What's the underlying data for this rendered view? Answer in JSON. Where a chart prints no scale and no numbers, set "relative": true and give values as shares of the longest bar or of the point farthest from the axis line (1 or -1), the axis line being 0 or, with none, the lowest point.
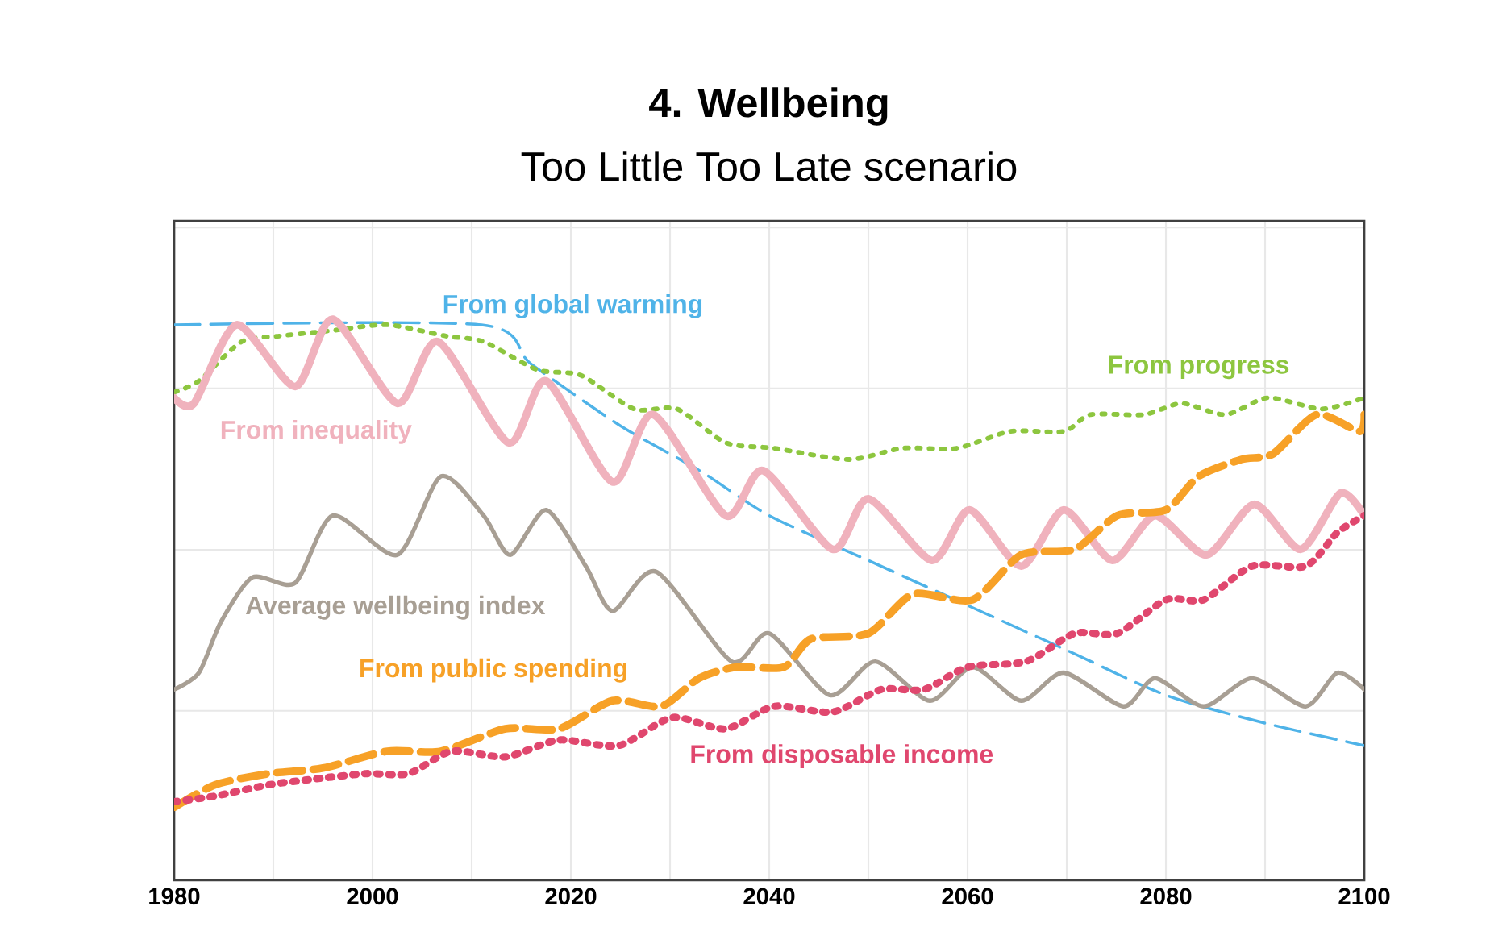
{
  "chart_data": {
    "type": "line",
    "title": "4. Wellbeing",
    "subtitle": "Too Little Too Late scenario",
    "relative": true,
    "grid": true,
    "legend": false,
    "xlim": [
      1980,
      2100
    ],
    "xticks": [
      1980,
      2000,
      2020,
      2040,
      2060,
      2080,
      2100
    ],
    "series": [
      {
        "name": "From global warming",
        "color": "#4fb3e8",
        "line_style": "dashed",
        "x": [
          1980,
          2011,
          2016,
          2025,
          2033,
          2040,
          2050,
          2060,
          2070,
          2080,
          2090,
          2100
        ],
        "values": [
          0.99,
          0.99,
          0.92,
          0.81,
          0.73,
          0.65,
          0.57,
          0.49,
          0.41,
          0.33,
          0.28,
          0.24
        ]
      },
      {
        "name": "From progress",
        "color": "#8dc63f",
        "line_style": "dotted",
        "x": [
          1980,
          1982.5,
          1986.8,
          1990.6,
          1996,
          2001.5,
          2007.4,
          2011.2,
          2016.6,
          2021,
          2026.4,
          2030.7,
          2035.6,
          2040.5,
          2048,
          2053.4,
          2058.9,
          2064.3,
          2069.7,
          2072.4,
          2077.8,
          2081.6,
          2086,
          2090.3,
          2095.7,
          2100
        ],
        "values": [
          0.87,
          0.89,
          0.96,
          0.97,
          0.98,
          0.99,
          0.97,
          0.96,
          0.91,
          0.9,
          0.84,
          0.84,
          0.78,
          0.77,
          0.75,
          0.77,
          0.77,
          0.8,
          0.8,
          0.83,
          0.83,
          0.85,
          0.83,
          0.86,
          0.84,
          0.86
        ]
      },
      {
        "name": "From inequality",
        "color": "#f0b2bd",
        "line_style": "solid",
        "x": [
          1980,
          1982,
          1986.3,
          1992.2,
          1996,
          2002.5,
          2006.6,
          2013.7,
          2017.5,
          2024.2,
          2028.3,
          2035.6,
          2039.4,
          2046.4,
          2050,
          2056.4,
          2060.2,
          2065.4,
          2069.7,
          2074.6,
          2078.9,
          2084.1,
          2088.9,
          2093.6,
          2097.6,
          2100
        ],
        "values": [
          0.86,
          0.85,
          0.99,
          0.88,
          1.0,
          0.85,
          0.96,
          0.78,
          0.89,
          0.71,
          0.83,
          0.65,
          0.73,
          0.59,
          0.68,
          0.57,
          0.66,
          0.56,
          0.66,
          0.57,
          0.65,
          0.58,
          0.67,
          0.59,
          0.69,
          0.65
        ]
      },
      {
        "name": "Average wellbeing index",
        "color": "#a89f94",
        "line_style": "solid",
        "x": [
          1980,
          1982.5,
          1984.7,
          1987.9,
          1992.2,
          1996,
          2002.5,
          2006.9,
          2011.2,
          2013.9,
          2017.5,
          2021.5,
          2024.2,
          2028.6,
          2036.2,
          2040,
          2046.1,
          2050.7,
          2056.2,
          2060.5,
          2065.4,
          2069.7,
          2075.7,
          2078.9,
          2083.8,
          2088.7,
          2094.1,
          2097.3,
          2100
        ],
        "values": [
          0.34,
          0.37,
          0.46,
          0.54,
          0.53,
          0.65,
          0.58,
          0.72,
          0.65,
          0.58,
          0.66,
          0.56,
          0.48,
          0.55,
          0.39,
          0.44,
          0.33,
          0.39,
          0.32,
          0.38,
          0.32,
          0.37,
          0.31,
          0.36,
          0.31,
          0.36,
          0.31,
          0.37,
          0.34
        ]
      },
      {
        "name": "From public spending",
        "color": "#f7a127",
        "line_style": "dashed",
        "x": [
          1980,
          1984.1,
          1989.5,
          1995,
          2001.5,
          2006.9,
          2013.4,
          2018.8,
          2024.2,
          2029.1,
          2032.9,
          2036.7,
          2041.5,
          2044.2,
          2050,
          2054.5,
          2060.5,
          2065.4,
          2070.8,
          2075.1,
          2080,
          2083.3,
          2087.6,
          2090.8,
          2095.2,
          2099.5,
          2100
        ],
        "values": [
          0.13,
          0.17,
          0.19,
          0.2,
          0.23,
          0.23,
          0.27,
          0.27,
          0.32,
          0.31,
          0.36,
          0.38,
          0.38,
          0.43,
          0.44,
          0.51,
          0.5,
          0.58,
          0.59,
          0.65,
          0.66,
          0.72,
          0.75,
          0.76,
          0.83,
          0.8,
          0.83
        ]
      },
      {
        "name": "From disposable income",
        "color": "#e0476e",
        "line_style": "dotted",
        "x": [
          1980,
          1984.1,
          1989.5,
          1993.9,
          1999.3,
          2003.6,
          2008,
          2013.4,
          2018.8,
          2024.8,
          2030.2,
          2035.6,
          2040.5,
          2046.4,
          2051.3,
          2055.6,
          2060,
          2065.9,
          2070.8,
          2075.1,
          2080,
          2083.8,
          2088.7,
          2094.1,
          2097.3,
          2100
        ],
        "values": [
          0.14,
          0.15,
          0.17,
          0.18,
          0.19,
          0.19,
          0.23,
          0.22,
          0.25,
          0.24,
          0.29,
          0.27,
          0.31,
          0.3,
          0.34,
          0.34,
          0.38,
          0.39,
          0.44,
          0.44,
          0.5,
          0.5,
          0.56,
          0.56,
          0.62,
          0.65
        ]
      }
    ]
  }
}
